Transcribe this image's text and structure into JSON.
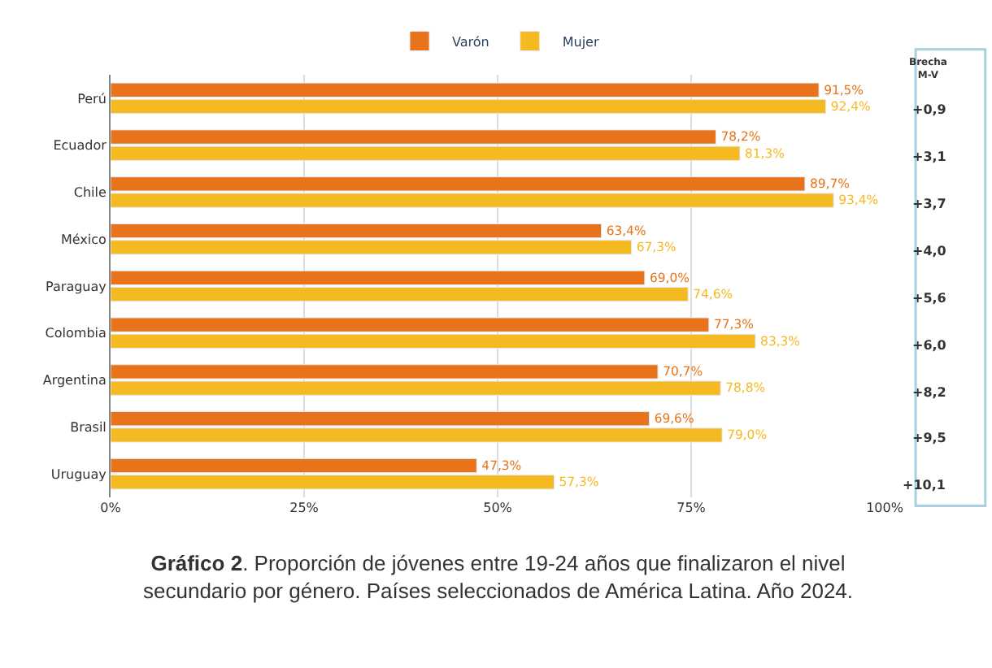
{
  "chart_data": {
    "type": "bar",
    "orientation": "horizontal",
    "categories": [
      "Perú",
      "Ecuador",
      "Chile",
      "México",
      "Paraguay",
      "Colombia",
      "Argentina",
      "Brasil",
      "Uruguay"
    ],
    "series": [
      {
        "name": "Varón",
        "color": "#e8731a",
        "values": [
          91.5,
          78.2,
          89.7,
          63.4,
          69.0,
          77.3,
          70.7,
          69.6,
          47.3
        ],
        "value_labels": [
          "91,5%",
          "78,2%",
          "89,7%",
          "63,4%",
          "69,0%",
          "77,3%",
          "70,7%",
          "69,6%",
          "47,3%"
        ]
      },
      {
        "name": "Mujer",
        "color": "#f5b922",
        "values": [
          92.4,
          81.3,
          93.4,
          67.3,
          74.6,
          83.3,
          78.8,
          79.0,
          57.3
        ],
        "value_labels": [
          "92,4%",
          "81,3%",
          "93,4%",
          "67,3%",
          "74,6%",
          "83,3%",
          "78,8%",
          "79,0%",
          "57,3%"
        ]
      }
    ],
    "xlim": [
      0,
      100
    ],
    "xticks": [
      {
        "value": 0,
        "label": "0%"
      },
      {
        "value": 25,
        "label": "25%"
      },
      {
        "value": 50,
        "label": "50%"
      },
      {
        "value": 75,
        "label": "75%"
      },
      {
        "value": 100,
        "label": "100%"
      }
    ],
    "grid": "x",
    "legend": "top",
    "annotations": [
      "Brecha M-V",
      "+0,9",
      "+3,1",
      "+3,7",
      "+4,0",
      "+5,6",
      "+6,0",
      "+8,2",
      "+9,5",
      "+10,1",
      "Gráfico 2. Proporción de jóvenes entre 19-24 años que finalizaron el nivel secundario por género. Países seleccionados de América Latina. Año 2024."
    ]
  }
}
